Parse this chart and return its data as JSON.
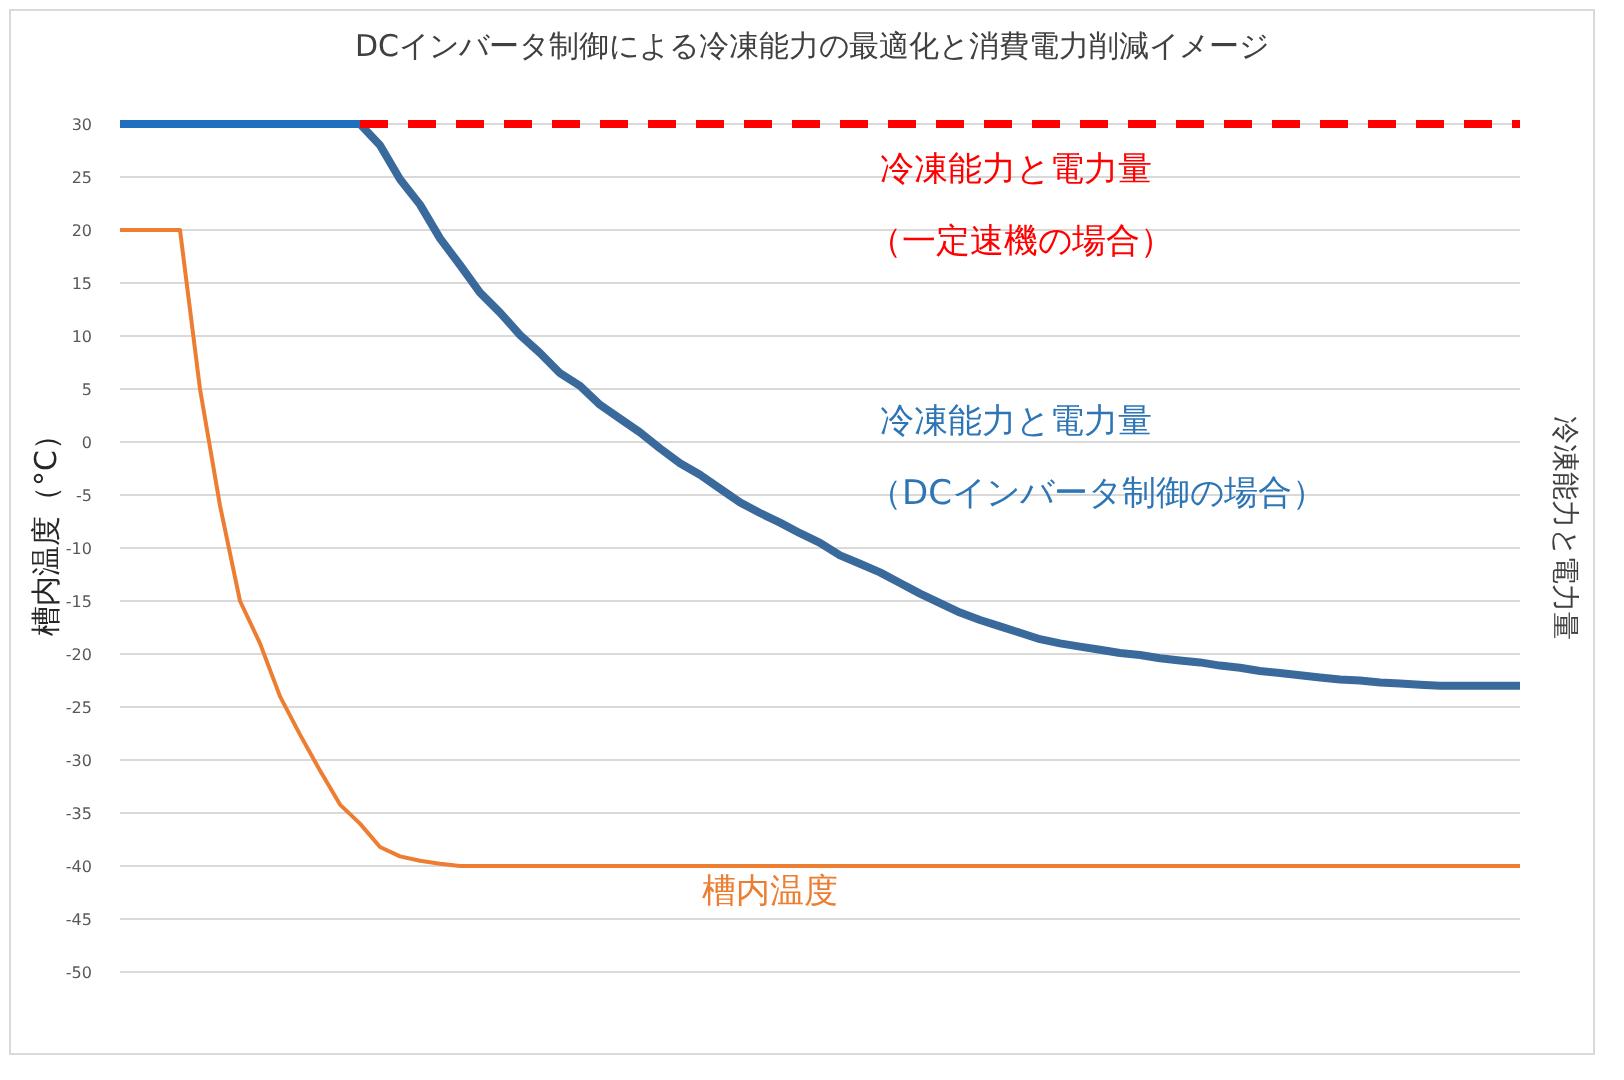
{
  "chart_data": {
    "type": "line",
    "title": "DCインバータ制御による冷凍能力の最適化と消費電力削減イメージ",
    "ylabel": "槽内温度（°C）",
    "y2label": "冷凍能力と電力量",
    "categories": [
      null,
      null,
      null,
      null,
      null,
      null,
      null,
      null,
      null,
      null,
      null,
      null,
      null,
      null,
      null,
      null,
      null,
      null,
      null,
      null,
      null,
      null,
      null,
      null,
      null,
      null,
      null,
      null,
      null,
      null,
      null,
      null,
      null,
      null,
      null,
      null,
      null,
      null,
      null,
      null,
      null,
      null,
      null,
      null,
      null,
      null,
      null,
      null,
      null,
      null,
      null,
      null,
      null,
      null,
      null,
      null,
      null,
      null,
      null,
      null,
      null,
      null,
      null,
      null,
      null,
      null,
      null,
      null,
      null,
      null,
      null
    ],
    "ylim": [
      -50,
      30
    ],
    "yticks": [
      -50,
      -45,
      -40,
      -35,
      -30,
      -25,
      -20,
      -15,
      -10,
      -5,
      0,
      5,
      10,
      15,
      20,
      25,
      30
    ],
    "grid": "y",
    "series": [
      {
        "name": "槽内温度",
        "color": "#ed7d31",
        "values": [
          20,
          20,
          20,
          20,
          5,
          -6,
          -15,
          -19,
          -24,
          -27.6,
          -31,
          -34.2,
          -36,
          -38.2,
          -39.1,
          -39.5,
          -39.8,
          -40,
          -40,
          -40,
          -40,
          -40,
          -40,
          -40,
          -40,
          -40,
          -40,
          -40,
          -40,
          -40,
          -40,
          -40,
          -40,
          -40,
          -40,
          -40,
          -40,
          -40,
          -40,
          -40,
          -40,
          -40,
          -40,
          -40,
          -40,
          -40,
          -40,
          -40,
          -40,
          -40,
          -40,
          -40,
          -40,
          -40,
          -40,
          -40,
          -40,
          -40,
          -40,
          -40,
          -40,
          -40,
          -40,
          -40,
          -40,
          -40,
          -40,
          -40,
          -40,
          -40,
          -40
        ]
      },
      {
        "color": "#1f6fbf",
        "values": [
          30,
          30,
          30,
          30,
          30,
          30,
          30,
          30,
          30,
          30,
          30,
          30,
          30,
          null,
          null,
          null,
          null,
          null,
          null,
          null,
          null,
          null,
          null,
          null,
          null,
          null,
          null,
          null,
          null,
          null,
          null,
          null,
          null,
          null,
          null,
          null,
          null,
          null,
          null,
          null,
          null,
          null,
          null,
          null,
          null,
          null,
          null,
          null,
          null,
          null,
          null,
          null,
          null,
          null,
          null,
          null,
          null,
          null,
          null,
          null,
          null,
          null,
          null,
          null,
          null,
          null,
          null,
          null,
          null,
          null,
          null
        ]
      },
      {
        "name": "冷凍能力と電力量（DCインバータ制御の場合）",
        "color": "#3a6a9c",
        "values": [
          null,
          null,
          null,
          null,
          null,
          null,
          null,
          null,
          null,
          null,
          null,
          null,
          30,
          28,
          24.8,
          22.4,
          19.2,
          16.7,
          14.1,
          12.2,
          10.1,
          8.4,
          6.5,
          5.3,
          3.5,
          2.2,
          0.9,
          -0.6,
          -2,
          -3.1,
          -4.4,
          -5.7,
          -6.7,
          -7.6,
          -8.6,
          -9.5,
          -10.7,
          -11.5,
          -12.3,
          -13.3,
          -14.3,
          -15.2,
          -16.1,
          -16.8,
          -17.4,
          -18,
          -18.6,
          -19,
          -19.3,
          -19.6,
          -19.9,
          -20.1,
          -20.4,
          -20.6,
          -20.8,
          -21.1,
          -21.3,
          -21.6,
          -21.8,
          -22,
          -22.2,
          -22.4,
          -22.5,
          -22.7,
          -22.8,
          -22.9,
          -23,
          -23,
          -23,
          -23,
          -23
        ]
      },
      {
        "name": "冷凍能力と電力量（一定速機の場合）",
        "color": "#ff0000",
        "line_style": "dashed",
        "values": [
          null,
          null,
          null,
          null,
          null,
          null,
          null,
          null,
          null,
          null,
          null,
          null,
          30,
          30,
          30,
          30,
          30,
          30,
          30,
          30,
          30,
          30,
          30,
          30,
          30,
          30,
          30,
          30,
          30,
          30,
          30,
          30,
          30,
          30,
          30,
          30,
          30,
          30,
          30,
          30,
          30,
          30,
          30,
          30,
          30,
          30,
          30,
          30,
          30,
          30,
          30,
          30,
          30,
          30,
          30,
          30,
          30,
          30,
          30,
          30,
          30,
          30,
          30,
          30,
          30,
          30,
          30,
          30,
          30,
          30,
          30
        ]
      }
    ]
  }
}
